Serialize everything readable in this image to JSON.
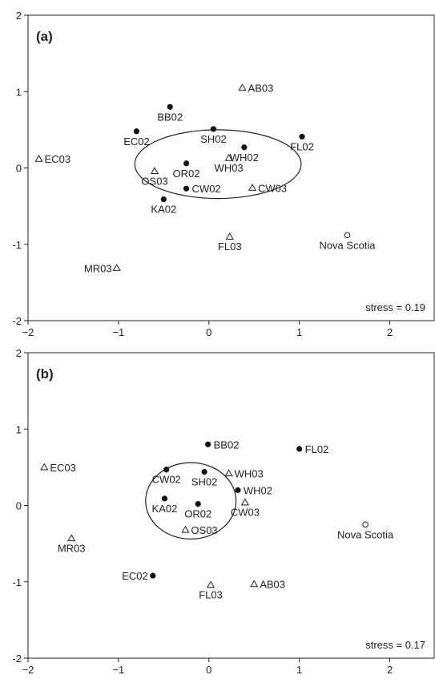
{
  "chart_data": [
    {
      "type": "scatter",
      "panel_label": "(a)",
      "stress_label": "stress = 0.19",
      "xlim": [
        -2,
        2.5
      ],
      "ylim": [
        -2,
        2
      ],
      "x_ticks": [
        -2,
        -1,
        0,
        1,
        2
      ],
      "y_ticks": [
        -2,
        -1,
        0,
        1,
        2
      ],
      "x_tick_labels": [
        "−2",
        "−1",
        "0",
        "1",
        "2"
      ],
      "y_tick_labels": [
        "-2",
        "-1",
        "0",
        "1",
        "2"
      ],
      "ellipse": {
        "cx": 0.1,
        "cy": 0.05,
        "rx": 0.92,
        "ry": 0.45
      },
      "points": [
        {
          "label": "AB03",
          "x": 0.37,
          "y": 1.05,
          "marker": "triangle",
          "label_pos": "right"
        },
        {
          "label": "BB02",
          "x": -0.43,
          "y": 0.8,
          "marker": "dot",
          "label_pos": "below"
        },
        {
          "label": "EC02",
          "x": -0.8,
          "y": 0.48,
          "marker": "dot",
          "label_pos": "below"
        },
        {
          "label": "SH02",
          "x": 0.05,
          "y": 0.51,
          "marker": "dot",
          "label_pos": "below"
        },
        {
          "label": "FL02",
          "x": 1.03,
          "y": 0.41,
          "marker": "dot",
          "label_pos": "below"
        },
        {
          "label": "EC03",
          "x": -1.88,
          "y": 0.12,
          "marker": "triangle",
          "label_pos": "right"
        },
        {
          "label": "WH02",
          "x": 0.39,
          "y": 0.27,
          "marker": "dot",
          "label_pos": "below"
        },
        {
          "label": "WH03",
          "x": 0.22,
          "y": 0.13,
          "marker": "triangle",
          "label_pos": "below"
        },
        {
          "label": "OR02",
          "x": -0.25,
          "y": 0.06,
          "marker": "dot",
          "label_pos": "below"
        },
        {
          "label": "OS03",
          "x": -0.6,
          "y": -0.04,
          "marker": "triangle",
          "label_pos": "below"
        },
        {
          "label": "CW02",
          "x": -0.25,
          "y": -0.27,
          "marker": "dot",
          "label_pos": "right"
        },
        {
          "label": "CW03",
          "x": 0.48,
          "y": -0.26,
          "marker": "triangle",
          "label_pos": "right"
        },
        {
          "label": "KA02",
          "x": -0.5,
          "y": -0.41,
          "marker": "dot",
          "label_pos": "below"
        },
        {
          "label": "FL03",
          "x": 0.23,
          "y": -0.9,
          "marker": "triangle",
          "label_pos": "below"
        },
        {
          "label": "Nova Scotia",
          "x": 1.53,
          "y": -0.88,
          "marker": "circle",
          "label_pos": "below"
        },
        {
          "label": "MR03",
          "x": -1.02,
          "y": -1.31,
          "marker": "triangle",
          "label_pos": "left"
        }
      ]
    },
    {
      "type": "scatter",
      "panel_label": "(b)",
      "stress_label": "stress = 0.17",
      "xlim": [
        -2,
        2.5
      ],
      "ylim": [
        -2,
        2
      ],
      "x_ticks": [
        -2,
        -1,
        0,
        1,
        2
      ],
      "y_ticks": [
        -2,
        -1,
        0,
        1,
        2
      ],
      "x_tick_labels": [
        "−2",
        "−1",
        "0",
        "1",
        "2"
      ],
      "y_tick_labels": [
        "-2",
        "-1",
        "0",
        "1",
        "2"
      ],
      "ellipse": {
        "cx": -0.2,
        "cy": 0.06,
        "rx": 0.5,
        "ry": 0.5
      },
      "points": [
        {
          "label": "BB02",
          "x": -0.01,
          "y": 0.8,
          "marker": "dot",
          "label_pos": "right"
        },
        {
          "label": "FL02",
          "x": 1.0,
          "y": 0.74,
          "marker": "dot",
          "label_pos": "right"
        },
        {
          "label": "EC03",
          "x": -1.82,
          "y": 0.5,
          "marker": "triangle",
          "label_pos": "right"
        },
        {
          "label": "CW02",
          "x": -0.47,
          "y": 0.47,
          "marker": "dot",
          "label_pos": "below"
        },
        {
          "label": "SH02",
          "x": -0.05,
          "y": 0.44,
          "marker": "dot",
          "label_pos": "below"
        },
        {
          "label": "WH03",
          "x": 0.22,
          "y": 0.42,
          "marker": "triangle",
          "label_pos": "right"
        },
        {
          "label": "WH02",
          "x": 0.32,
          "y": 0.2,
          "marker": "dot",
          "label_pos": "right"
        },
        {
          "label": "KA02",
          "x": -0.49,
          "y": 0.09,
          "marker": "dot",
          "label_pos": "below"
        },
        {
          "label": "OR02",
          "x": -0.12,
          "y": 0.02,
          "marker": "dot",
          "label_pos": "below"
        },
        {
          "label": "CW03",
          "x": 0.4,
          "y": 0.04,
          "marker": "triangle",
          "label_pos": "below"
        },
        {
          "label": "OS03",
          "x": -0.26,
          "y": -0.32,
          "marker": "triangle",
          "label_pos": "right"
        },
        {
          "label": "Nova Scotia",
          "x": 1.73,
          "y": -0.25,
          "marker": "circle",
          "label_pos": "below"
        },
        {
          "label": "MR03",
          "x": -1.52,
          "y": -0.43,
          "marker": "triangle",
          "label_pos": "below"
        },
        {
          "label": "EC02",
          "x": -0.62,
          "y": -0.92,
          "marker": "dot",
          "label_pos": "left"
        },
        {
          "label": "FL03",
          "x": 0.02,
          "y": -1.04,
          "marker": "triangle",
          "label_pos": "below"
        },
        {
          "label": "AB03",
          "x": 0.5,
          "y": -1.03,
          "marker": "triangle",
          "label_pos": "right"
        }
      ]
    }
  ]
}
